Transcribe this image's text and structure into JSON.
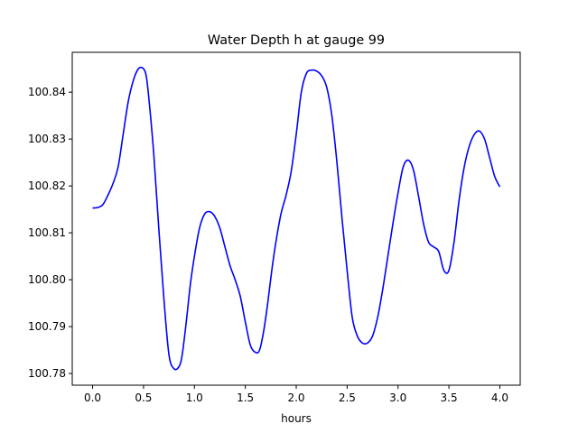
{
  "chart_data": {
    "type": "line",
    "title": "Water Depth h at gauge 99",
    "xlabel": "hours",
    "ylabel": "",
    "xlim": [
      -0.2,
      4.2
    ],
    "ylim": [
      100.7775,
      100.8485
    ],
    "x_ticks": [
      0.0,
      0.5,
      1.0,
      1.5,
      2.0,
      2.5,
      3.0,
      3.5,
      4.0
    ],
    "x_tick_labels": [
      "0.0",
      "0.5",
      "1.0",
      "1.5",
      "2.0",
      "2.5",
      "3.0",
      "3.5",
      "4.0"
    ],
    "y_ticks": [
      100.78,
      100.79,
      100.8,
      100.81,
      100.82,
      100.83,
      100.84
    ],
    "y_tick_labels": [
      "100.78",
      "100.79",
      "100.80",
      "100.81",
      "100.82",
      "100.83",
      "100.84"
    ],
    "grid": false,
    "series": [
      {
        "color": "#0000ff",
        "x": [
          0.0,
          0.05,
          0.1,
          0.15,
          0.2,
          0.25,
          0.3,
          0.35,
          0.4,
          0.45,
          0.5,
          0.53,
          0.56,
          0.6,
          0.65,
          0.7,
          0.75,
          0.8,
          0.85,
          0.88,
          0.92,
          0.96,
          1.0,
          1.05,
          1.1,
          1.15,
          1.2,
          1.25,
          1.3,
          1.35,
          1.4,
          1.45,
          1.5,
          1.55,
          1.6,
          1.64,
          1.68,
          1.72,
          1.76,
          1.8,
          1.85,
          1.9,
          1.95,
          2.0,
          2.05,
          2.1,
          2.15,
          2.2,
          2.25,
          2.3,
          2.35,
          2.4,
          2.45,
          2.5,
          2.55,
          2.6,
          2.65,
          2.7,
          2.75,
          2.8,
          2.85,
          2.9,
          2.95,
          3.0,
          3.05,
          3.1,
          3.15,
          3.2,
          3.25,
          3.3,
          3.35,
          3.4,
          3.45,
          3.5,
          3.55,
          3.6,
          3.65,
          3.7,
          3.75,
          3.8,
          3.85,
          3.9,
          3.95,
          4.0
        ],
        "y": [
          100.8153,
          100.8154,
          100.816,
          100.818,
          100.8205,
          100.824,
          100.831,
          100.838,
          100.8425,
          100.845,
          100.845,
          100.843,
          100.837,
          100.827,
          100.811,
          100.796,
          100.784,
          100.781,
          100.7815,
          100.784,
          100.791,
          100.799,
          100.805,
          100.811,
          100.814,
          100.8145,
          100.8135,
          100.811,
          100.807,
          100.803,
          100.8,
          100.7965,
          100.791,
          100.786,
          100.7845,
          100.785,
          100.789,
          100.795,
          100.802,
          100.808,
          100.814,
          100.818,
          100.823,
          100.831,
          100.84,
          100.844,
          100.8447,
          100.8445,
          100.8435,
          100.841,
          100.835,
          100.825,
          100.813,
          100.802,
          100.792,
          100.788,
          100.7865,
          100.7865,
          100.788,
          100.792,
          100.798,
          100.805,
          100.812,
          100.8185,
          100.824,
          100.8255,
          100.8235,
          100.818,
          100.812,
          100.808,
          100.807,
          100.806,
          100.802,
          100.802,
          100.808,
          100.817,
          100.824,
          100.8285,
          100.831,
          100.8317,
          100.83,
          100.826,
          100.822,
          100.8198
        ]
      }
    ]
  }
}
